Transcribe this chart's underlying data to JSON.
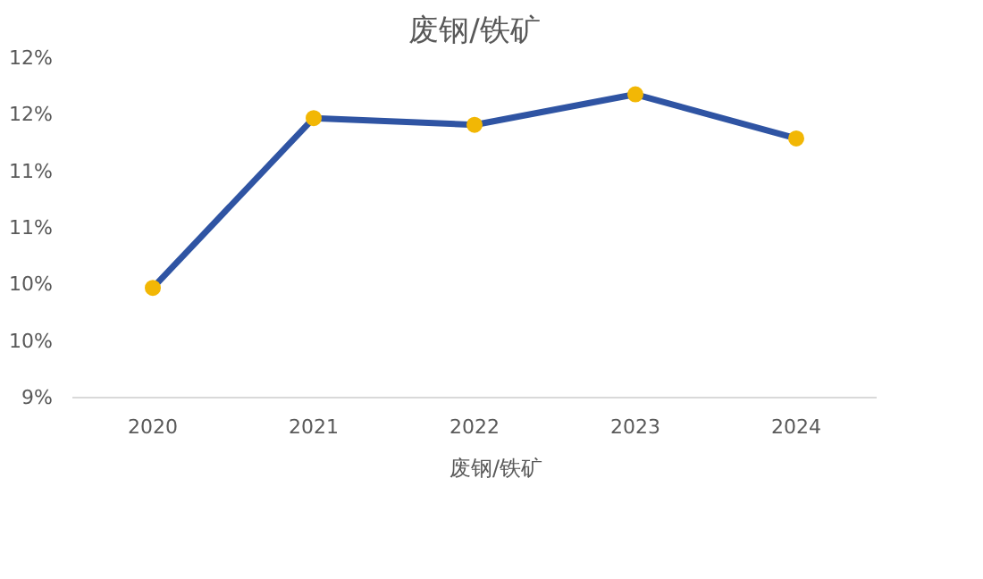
{
  "chart_data": {
    "type": "line",
    "title": "废钢/铁矿",
    "categories": [
      "2020",
      "2021",
      "2022",
      "2023",
      "2024"
    ],
    "series": [
      {
        "name": "废钢/铁矿",
        "color": "#2f54a3",
        "colors": [
          "#f2b705",
          "#f2b705",
          "#f2b705",
          "#f2b705",
          "#f2b705"
        ],
        "values": [
          9.97,
          11.47,
          11.41,
          11.68,
          11.29
        ]
      }
    ],
    "ylim": [
      9,
      12
    ],
    "yticks": [
      {
        "value": 9,
        "label": "9%"
      },
      {
        "value": 9.5,
        "label": "10%"
      },
      {
        "value": 10,
        "label": "10%"
      },
      {
        "value": 10.5,
        "label": "11%"
      },
      {
        "value": 11,
        "label": "11%"
      },
      {
        "value": 11.5,
        "label": "12%"
      },
      {
        "value": 12,
        "label": "12%"
      }
    ],
    "grid": false,
    "legend": "bottom",
    "marker": "circle",
    "line_style": "solid"
  }
}
